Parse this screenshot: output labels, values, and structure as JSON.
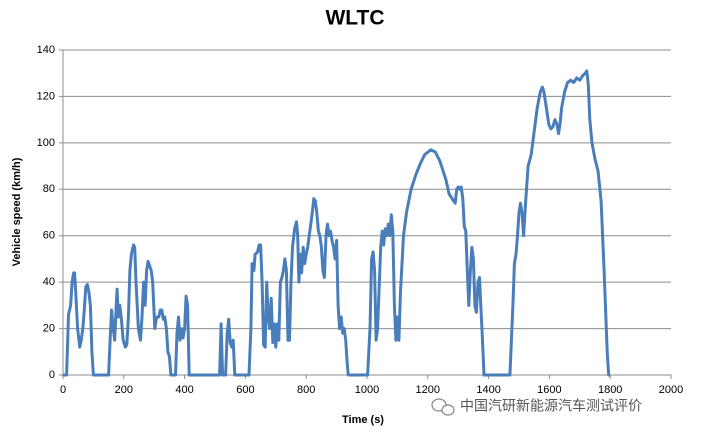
{
  "chart_data": {
    "type": "line",
    "title": "WLTC",
    "xlabel": "Time (s)",
    "ylabel": "Vehicle speed (km/h)",
    "xlim": [
      0,
      2000
    ],
    "xticks": [
      0,
      200,
      400,
      600,
      800,
      1000,
      1200,
      1400,
      1600,
      1800,
      2000
    ],
    "ylim": [
      0,
      140
    ],
    "yticks": [
      0,
      20,
      40,
      60,
      80,
      100,
      120,
      140
    ],
    "grid": true,
    "watermark": "中国汽研新能源汽车测试评价",
    "series": [
      {
        "name": "WLTC",
        "color": "#4a7ebb",
        "x": [
          0,
          12,
          18,
          25,
          30,
          35,
          38,
          42,
          48,
          55,
          60,
          65,
          70,
          75,
          80,
          85,
          90,
          95,
          100,
          150,
          155,
          160,
          165,
          170,
          175,
          178,
          182,
          187,
          192,
          198,
          205,
          210,
          215,
          220,
          225,
          232,
          236,
          240,
          248,
          255,
          260,
          265,
          270,
          275,
          280,
          285,
          290,
          295,
          302,
          308,
          315,
          320,
          325,
          330,
          335,
          340,
          345,
          350,
          355,
          370,
          375,
          380,
          385,
          390,
          395,
          400,
          405,
          410,
          415,
          515,
          520,
          525,
          535,
          540,
          545,
          550,
          555,
          560,
          565,
          612,
          618,
          622,
          628,
          632,
          640,
          645,
          650,
          655,
          660,
          665,
          670,
          675,
          680,
          685,
          690,
          695,
          700,
          705,
          710,
          715,
          720,
          725,
          730,
          735,
          740,
          745,
          750,
          755,
          762,
          768,
          772,
          776,
          780,
          785,
          790,
          795,
          800,
          805,
          810,
          815,
          820,
          825,
          830,
          835,
          840,
          845,
          850,
          855,
          860,
          865,
          870,
          875,
          880,
          885,
          890,
          895,
          900,
          905,
          910,
          915,
          920,
          925,
          930,
          935,
          938,
          1002,
          1010,
          1015,
          1020,
          1025,
          1030,
          1035,
          1045,
          1050,
          1055,
          1060,
          1065,
          1070,
          1075,
          1080,
          1085,
          1090,
          1095,
          1100,
          1105,
          1110,
          1120,
          1130,
          1145,
          1160,
          1175,
          1190,
          1210,
          1225,
          1240,
          1250,
          1260,
          1270,
          1280,
          1290,
          1295,
          1300,
          1305,
          1310,
          1315,
          1320,
          1325,
          1330,
          1335,
          1340,
          1345,
          1350,
          1355,
          1360,
          1365,
          1370,
          1375,
          1380,
          1385,
          1470,
          1480,
          1485,
          1490,
          1495,
          1500,
          1505,
          1510,
          1515,
          1522,
          1530,
          1540,
          1550,
          1560,
          1570,
          1577,
          1582,
          1590,
          1598,
          1605,
          1612,
          1618,
          1625,
          1630,
          1635,
          1640,
          1650,
          1660,
          1670,
          1680,
          1690,
          1700,
          1710,
          1718,
          1723,
          1728,
          1733,
          1740,
          1750,
          1760,
          1770,
          1780,
          1790,
          1795,
          1800
        ],
        "values": [
          0,
          0,
          26,
          30,
          40,
          44,
          44,
          35,
          20,
          12,
          15,
          20,
          28,
          38,
          39,
          36,
          30,
          10,
          0,
          0,
          15,
          28,
          20,
          15,
          30,
          37,
          25,
          30,
          24,
          15,
          12,
          13,
          25,
          45,
          52,
          56,
          55,
          40,
          20,
          15,
          25,
          40,
          30,
          45,
          49,
          47,
          45,
          40,
          20,
          25,
          25,
          28,
          28,
          24,
          25,
          20,
          10,
          8,
          0,
          0,
          18,
          25,
          15,
          20,
          16,
          20,
          34,
          30,
          0,
          0,
          22,
          0,
          0,
          18,
          24,
          14,
          12,
          15,
          0,
          0,
          20,
          48,
          45,
          52,
          53,
          56,
          56,
          40,
          13,
          12,
          40,
          25,
          20,
          33,
          14,
          22,
          12,
          22,
          15,
          40,
          42,
          45,
          50,
          45,
          15,
          15,
          40,
          55,
          63,
          66,
          60,
          40,
          52,
          44,
          55,
          48,
          52,
          55,
          60,
          65,
          70,
          76,
          75,
          70,
          62,
          60,
          55,
          45,
          42,
          60,
          65,
          60,
          62,
          58,
          55,
          50,
          58,
          30,
          20,
          25,
          18,
          20,
          15,
          5,
          0,
          0,
          20,
          50,
          53,
          45,
          15,
          20,
          55,
          62,
          56,
          63,
          60,
          65,
          60,
          69,
          62,
          30,
          15,
          25,
          15,
          35,
          60,
          70,
          80,
          86,
          91,
          95,
          97,
          96,
          92,
          88,
          84,
          78,
          76,
          74,
          80,
          81,
          80,
          81,
          76,
          64,
          62,
          45,
          30,
          45,
          55,
          50,
          30,
          27,
          40,
          42,
          28,
          15,
          0,
          0,
          30,
          48,
          52,
          60,
          70,
          74,
          70,
          60,
          75,
          90,
          95,
          105,
          115,
          122,
          124,
          122,
          115,
          108,
          106,
          107,
          110,
          108,
          104,
          108,
          115,
          122,
          126,
          127,
          126,
          128,
          127,
          129,
          130,
          131,
          125,
          110,
          100,
          93,
          88,
          75,
          45,
          10,
          0,
          0
        ]
      }
    ]
  }
}
